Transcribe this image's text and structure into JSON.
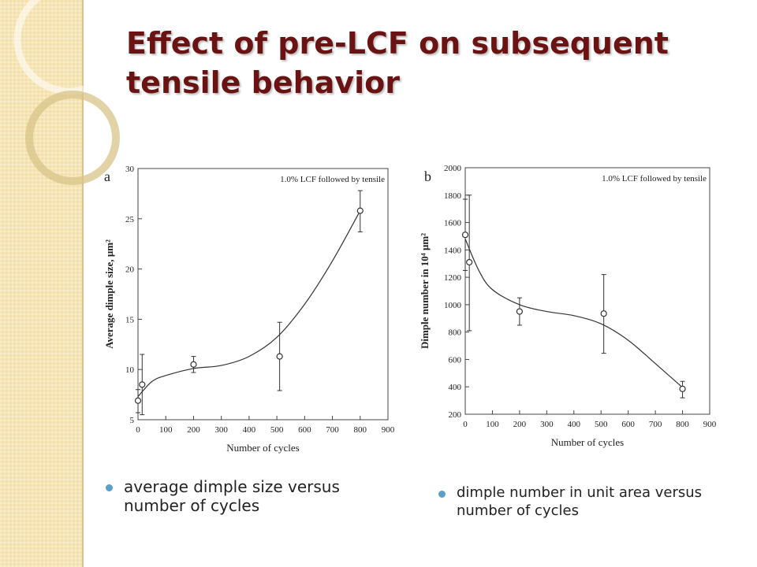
{
  "slide": {
    "title": "Effect of pre-LCF on subsequent tensile behavior",
    "bullets": [
      "average dimple size versus number of cycles",
      "dimple number in unit area versus number of cycles"
    ],
    "colors": {
      "title": "#6b1212",
      "bullet": "#5aa0c8",
      "sidebar": "#f3dfa8"
    }
  },
  "chart_data": [
    {
      "type": "scatter",
      "panel_label": "a",
      "annotation": "1.0% LCF followed by tensile",
      "xlabel": "Number of cycles",
      "ylabel": "Average dimple size, μm²",
      "xlim": [
        0,
        900
      ],
      "ylim": [
        5,
        30
      ],
      "xticks": [
        0,
        100,
        200,
        300,
        400,
        500,
        600,
        700,
        800,
        900
      ],
      "yticks": [
        5,
        10,
        15,
        20,
        25,
        30
      ],
      "grid": false,
      "points": [
        {
          "x": 0,
          "y": 6.9,
          "err_low": 5.7,
          "err_high": 8.0
        },
        {
          "x": 15,
          "y": 8.5,
          "err_low": 5.5,
          "err_high": 11.5
        },
        {
          "x": 200,
          "y": 10.5,
          "err_low": 9.7,
          "err_high": 11.3
        },
        {
          "x": 510,
          "y": 11.3,
          "err_low": 7.9,
          "err_high": 14.7
        },
        {
          "x": 800,
          "y": 25.8,
          "err_low": 23.7,
          "err_high": 27.8
        }
      ],
      "fit_curve": [
        [
          0,
          7.3
        ],
        [
          50,
          8.8
        ],
        [
          100,
          9.4
        ],
        [
          200,
          10.1
        ],
        [
          300,
          10.4
        ],
        [
          400,
          11.3
        ],
        [
          500,
          13.2
        ],
        [
          600,
          16.5
        ],
        [
          700,
          20.8
        ],
        [
          800,
          25.8
        ]
      ]
    },
    {
      "type": "scatter",
      "panel_label": "b",
      "annotation": "1.0% LCF followed by tensile",
      "xlabel": "Number of cycles",
      "ylabel": "Dimple number in 10⁴ μm²",
      "xlim": [
        0,
        900
      ],
      "ylim": [
        200,
        2000
      ],
      "xticks": [
        0,
        100,
        200,
        300,
        400,
        500,
        600,
        700,
        800,
        900
      ],
      "yticks": [
        200,
        400,
        600,
        800,
        1000,
        1200,
        1400,
        1600,
        1800,
        2000
      ],
      "grid": false,
      "points": [
        {
          "x": 0,
          "y": 1510,
          "err_low": 1250,
          "err_high": 1770
        },
        {
          "x": 15,
          "y": 1310,
          "err_low": 810,
          "err_high": 1800
        },
        {
          "x": 200,
          "y": 950,
          "err_low": 850,
          "err_high": 1050
        },
        {
          "x": 510,
          "y": 935,
          "err_low": 645,
          "err_high": 1220
        },
        {
          "x": 800,
          "y": 385,
          "err_low": 320,
          "err_high": 440
        }
      ],
      "fit_curve": [
        [
          0,
          1480
        ],
        [
          50,
          1250
        ],
        [
          100,
          1110
        ],
        [
          200,
          1000
        ],
        [
          300,
          950
        ],
        [
          400,
          920
        ],
        [
          500,
          860
        ],
        [
          600,
          740
        ],
        [
          700,
          570
        ],
        [
          800,
          395
        ]
      ]
    }
  ]
}
